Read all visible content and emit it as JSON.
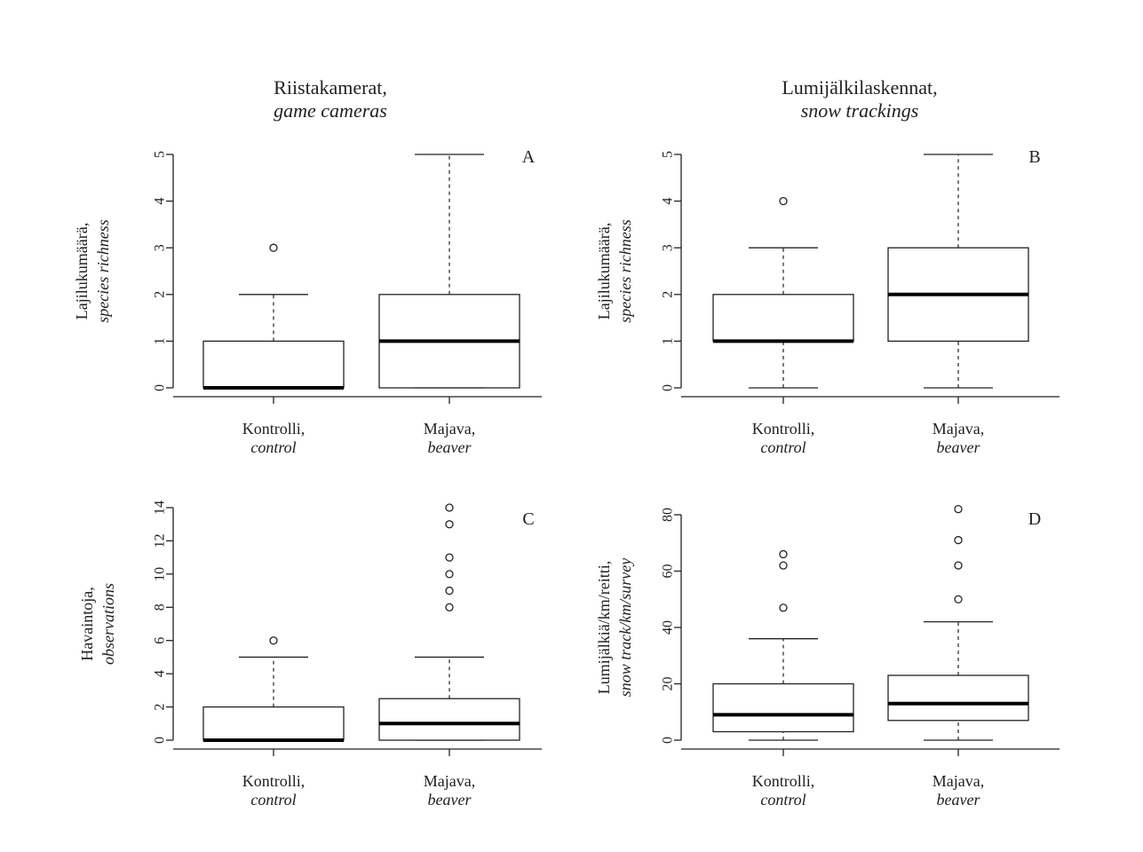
{
  "column_titles": [
    {
      "line1": "Riistakamerat,",
      "line2": "game cameras"
    },
    {
      "line1": "Lumijälkilaskennat,",
      "line2": "snow trackings"
    }
  ],
  "chart_data": [
    {
      "type": "boxplot",
      "panel_letter": "A",
      "ylabel": [
        "Lajilukumäärä,",
        "species richness"
      ],
      "xlabels": [
        [
          "Kontrolli,",
          "control"
        ],
        [
          "Majava,",
          "beaver"
        ]
      ],
      "ylim": [
        0,
        5
      ],
      "yticks": [
        0,
        1,
        2,
        3,
        4,
        5
      ],
      "ytick_labels": [
        "0",
        "1",
        "2",
        "3",
        "4",
        "5"
      ],
      "boxes": [
        {
          "min": 0,
          "q1": 0,
          "median": 0,
          "q3": 1,
          "max": 2,
          "outliers": [
            3
          ]
        },
        {
          "min": 0,
          "q1": 0,
          "median": 1,
          "q3": 2,
          "max": 5,
          "outliers": []
        }
      ]
    },
    {
      "type": "boxplot",
      "panel_letter": "B",
      "ylabel": [
        "Lajilukumäärä,",
        "species richness"
      ],
      "xlabels": [
        [
          "Kontrolli,",
          "control"
        ],
        [
          "Majava,",
          "beaver"
        ]
      ],
      "ylim": [
        0,
        5
      ],
      "yticks": [
        0,
        1,
        2,
        3,
        4,
        5
      ],
      "ytick_labels": [
        "0",
        "1",
        "2",
        "3",
        "4",
        "5"
      ],
      "boxes": [
        {
          "min": 0,
          "q1": 1,
          "median": 1,
          "q3": 2,
          "max": 3,
          "outliers": [
            4
          ]
        },
        {
          "min": 0,
          "q1": 1,
          "median": 2,
          "q3": 3,
          "max": 5,
          "outliers": []
        }
      ]
    },
    {
      "type": "boxplot",
      "panel_letter": "C",
      "ylabel": [
        "Havaintoja,",
        "observations"
      ],
      "xlabels": [
        [
          "Kontrolli,",
          "control"
        ],
        [
          "Majava,",
          "beaver"
        ]
      ],
      "ylim": [
        0,
        14
      ],
      "yticks": [
        0,
        2,
        4,
        6,
        8,
        10,
        12,
        14
      ],
      "ytick_labels": [
        "0",
        "2",
        "4",
        "6",
        "8",
        "10",
        "12",
        "14"
      ],
      "boxes": [
        {
          "min": 0,
          "q1": 0,
          "median": 0,
          "q3": 2,
          "max": 5,
          "outliers": [
            6
          ]
        },
        {
          "min": 0,
          "q1": 0,
          "median": 1,
          "q3": 2.5,
          "max": 5,
          "outliers": [
            8,
            9,
            10,
            11,
            13,
            14
          ]
        }
      ]
    },
    {
      "type": "boxplot",
      "panel_letter": "D",
      "ylabel": [
        "Lumijälkiä/km/reitti,",
        "snow track/km/survey"
      ],
      "xlabels": [
        [
          "Kontrolli,",
          "control"
        ],
        [
          "Majava,",
          "beaver"
        ]
      ],
      "ylim": [
        0,
        83
      ],
      "yticks": [
        0,
        20,
        40,
        60,
        80
      ],
      "ytick_labels": [
        "0",
        "20",
        "40",
        "60",
        "80"
      ],
      "boxes": [
        {
          "min": 0,
          "q1": 3,
          "median": 9,
          "q3": 20,
          "max": 36,
          "outliers": [
            47,
            62,
            66
          ]
        },
        {
          "min": 0,
          "q1": 7,
          "median": 13,
          "q3": 23,
          "max": 42,
          "outliers": [
            50,
            62,
            71,
            82
          ]
        }
      ]
    }
  ]
}
